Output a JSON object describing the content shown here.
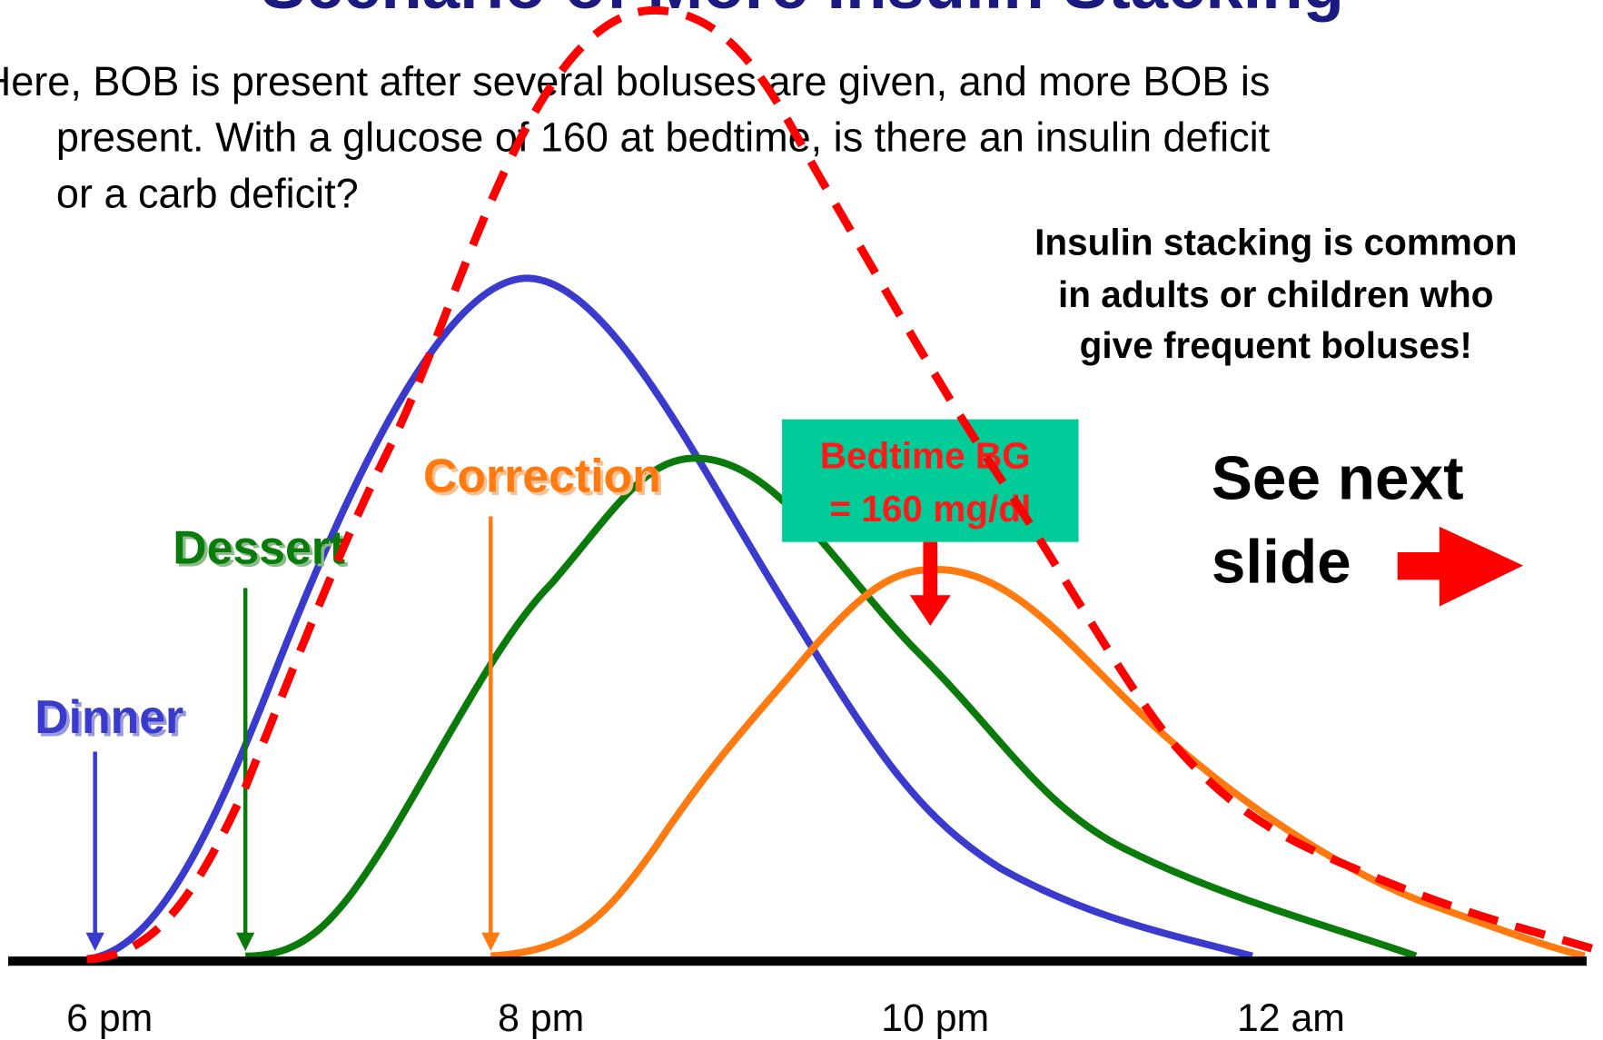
{
  "title": "Scenario of More Insulin Stacking",
  "paragraph": [
    "Here, BOB is present after several boluses are given, and more BOB is",
    "present. With a glucose of 160 at bedtime, is there an insulin deficit",
    "or a carb deficit?"
  ],
  "callout": [
    "Insulin stacking is common",
    "in adults or children who",
    "give frequent boluses!"
  ],
  "labels": {
    "dinner": "Dinner",
    "dessert": "Dessert",
    "correction": "Correction"
  },
  "bedtime": [
    "Bedtime BG",
    "= 160 mg/dl"
  ],
  "next": [
    "See next",
    "slide"
  ],
  "times": [
    "6 pm",
    "8 pm",
    "10 pm",
    "12 am"
  ]
}
